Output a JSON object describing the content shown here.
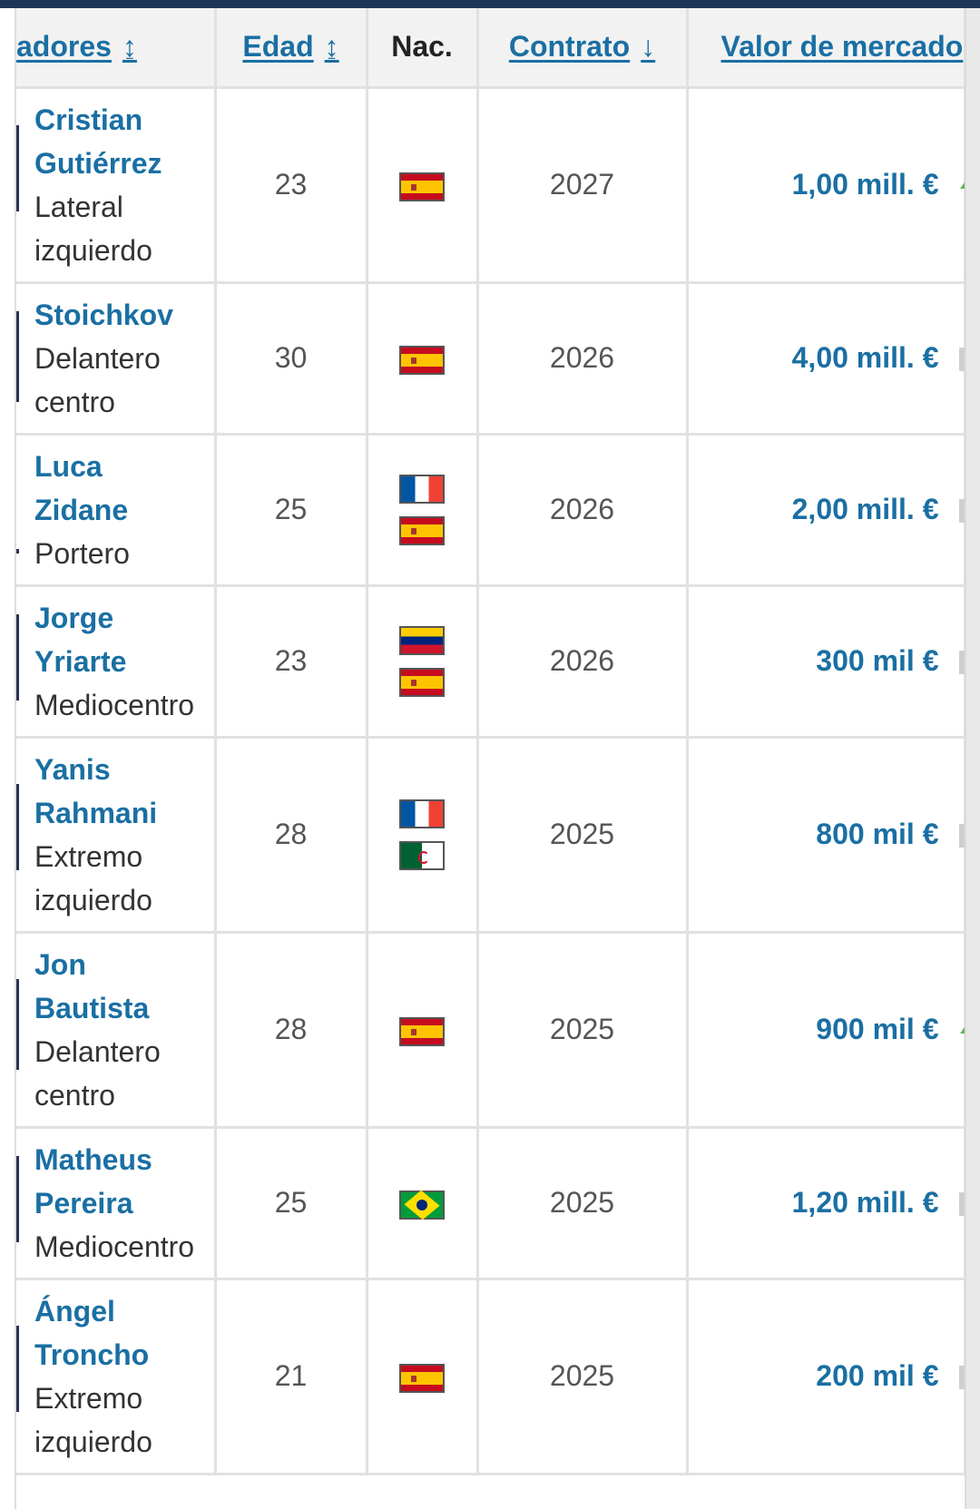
{
  "header": {
    "players": "adores",
    "players_arrow": "↨",
    "age": "Edad",
    "age_arrow": "↨",
    "nationality": "Nac.",
    "contract": "Contrato",
    "contract_arrow": "↓",
    "market_value": "Valor de mercado"
  },
  "rows": [
    {
      "name1": "Cristian",
      "name2": "Gutiérrez",
      "pos1": "Lateral",
      "pos2": "izquierdo",
      "age": "23",
      "flags": [
        "es"
      ],
      "contract": "2027",
      "value": "1,00 mill. €",
      "trend": "up"
    },
    {
      "name1": "Stoichkov",
      "name2": "",
      "pos1": "Delantero",
      "pos2": "centro",
      "age": "30",
      "flags": [
        "es"
      ],
      "contract": "2026",
      "value": "4,00 mill. €",
      "trend": "flat"
    },
    {
      "name1": "Luca",
      "name2": "Zidane",
      "pos1": "Portero",
      "pos2": "",
      "age": "25",
      "flags": [
        "fr",
        "es"
      ],
      "contract": "2026",
      "value": "2,00 mill. €",
      "trend": "flat"
    },
    {
      "name1": "Jorge",
      "name2": "Yriarte",
      "pos1": "Mediocentro",
      "pos2": "",
      "age": "23",
      "flags": [
        "ve",
        "es"
      ],
      "contract": "2026",
      "value": "300 mil €",
      "trend": "flat"
    },
    {
      "name1": "Yanis",
      "name2": "Rahmani",
      "pos1": "Extremo",
      "pos2": "izquierdo",
      "age": "28",
      "flags": [
        "fr",
        "dz"
      ],
      "contract": "2025",
      "value": "800 mil €",
      "trend": "flat"
    },
    {
      "name1": "Jon",
      "name2": "Bautista",
      "pos1": "Delantero",
      "pos2": "centro",
      "age": "28",
      "flags": [
        "es"
      ],
      "contract": "2025",
      "value": "900 mil €",
      "trend": "up"
    },
    {
      "name1": "Matheus",
      "name2": "Pereira",
      "pos1": "Mediocentro",
      "pos2": "",
      "age": "25",
      "flags": [
        "br"
      ],
      "contract": "2025",
      "value": "1,20 mill. €",
      "trend": "flat"
    },
    {
      "name1": "Ángel",
      "name2": "Troncho",
      "pos1": "Extremo",
      "pos2": "izquierdo",
      "age": "21",
      "flags": [
        "es"
      ],
      "contract": "2025",
      "value": "200 mil €",
      "trend": "flat"
    }
  ]
}
